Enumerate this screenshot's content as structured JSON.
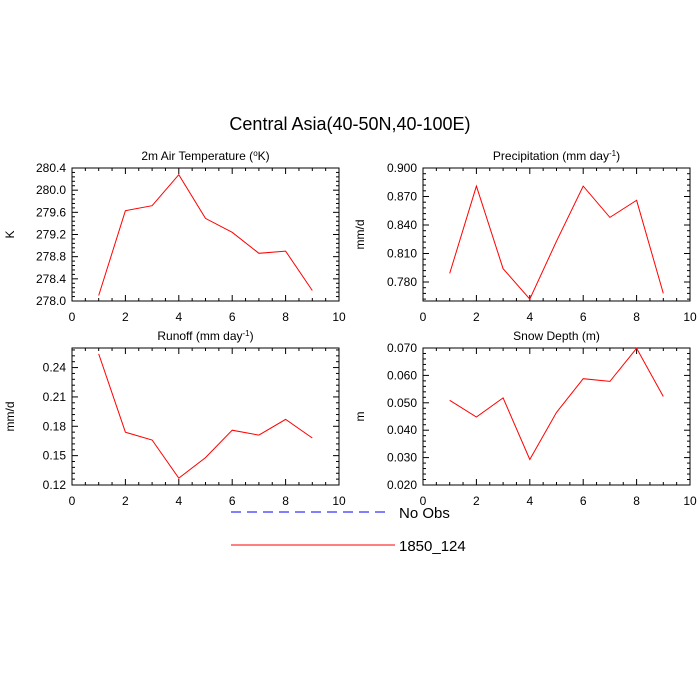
{
  "page_title": "Central Asia(40-50N,40-100E)",
  "colors": {
    "model": "#ff0000",
    "obs": "#0000ff"
  },
  "legend": {
    "placement": "bottom-center",
    "entries": [
      {
        "label": "No Obs",
        "color": "#0000ff",
        "style": "dashed"
      },
      {
        "label": "1850_124",
        "color": "#ff0000",
        "style": "solid"
      }
    ]
  },
  "chart_data": [
    {
      "type": "line",
      "title": "2m Air Temperature (°K)",
      "ylabel": "K",
      "xlim": [
        0,
        10
      ],
      "ylim": [
        278.0,
        280.4
      ],
      "x_ticks": [
        "0",
        "2",
        "4",
        "6",
        "8",
        "10"
      ],
      "y_ticks": [
        "278.0",
        "278.4",
        "278.8",
        "279.2",
        "279.6",
        "280.0",
        "280.4"
      ],
      "x": [
        1,
        2,
        3,
        4,
        5,
        6,
        7,
        8,
        9
      ],
      "series": [
        {
          "name": "1850_124",
          "values": [
            278.1,
            279.63,
            279.72,
            280.28,
            279.49,
            279.24,
            278.86,
            278.9,
            278.19
          ]
        }
      ]
    },
    {
      "type": "line",
      "title": "Precipitation (mm day-1)",
      "ylabel": "mm/d",
      "xlim": [
        0,
        10
      ],
      "ylim": [
        0.76,
        0.9
      ],
      "x_ticks": [
        "0",
        "2",
        "4",
        "6",
        "8",
        "10"
      ],
      "y_ticks": [
        "0.780",
        "0.810",
        "0.840",
        "0.870",
        "0.900"
      ],
      "x": [
        1,
        2,
        3,
        4,
        5,
        6,
        7,
        8,
        9
      ],
      "series": [
        {
          "name": "1850_124",
          "values": [
            0.789,
            0.881,
            0.794,
            0.762,
            0.823,
            0.881,
            0.848,
            0.866,
            0.768
          ]
        }
      ]
    },
    {
      "type": "line",
      "title": "Runoff (mm day-1)",
      "ylabel": "mm/d",
      "xlim": [
        0,
        10
      ],
      "ylim": [
        0.12,
        0.26
      ],
      "x_ticks": [
        "0",
        "2",
        "4",
        "6",
        "8",
        "10"
      ],
      "y_ticks": [
        "0.12",
        "0.15",
        "0.18",
        "0.21",
        "0.24"
      ],
      "x": [
        1,
        2,
        3,
        4,
        5,
        6,
        7,
        8,
        9
      ],
      "series": [
        {
          "name": "1850_124",
          "values": [
            0.254,
            0.174,
            0.166,
            0.127,
            0.148,
            0.176,
            0.171,
            0.187,
            0.168
          ]
        }
      ]
    },
    {
      "type": "line",
      "title": "Snow Depth (m)",
      "ylabel": "m",
      "xlim": [
        0,
        10
      ],
      "ylim": [
        0.02,
        0.07
      ],
      "x_ticks": [
        "0",
        "2",
        "4",
        "6",
        "8",
        "10"
      ],
      "y_ticks": [
        "0.020",
        "0.030",
        "0.040",
        "0.050",
        "0.060",
        "0.070"
      ],
      "x": [
        1,
        2,
        3,
        4,
        5,
        6,
        7,
        8,
        9
      ],
      "series": [
        {
          "name": "1850_124",
          "values": [
            0.0509,
            0.0448,
            0.0518,
            0.0293,
            0.0465,
            0.0588,
            0.0578,
            0.0699,
            0.0523
          ]
        }
      ]
    }
  ]
}
